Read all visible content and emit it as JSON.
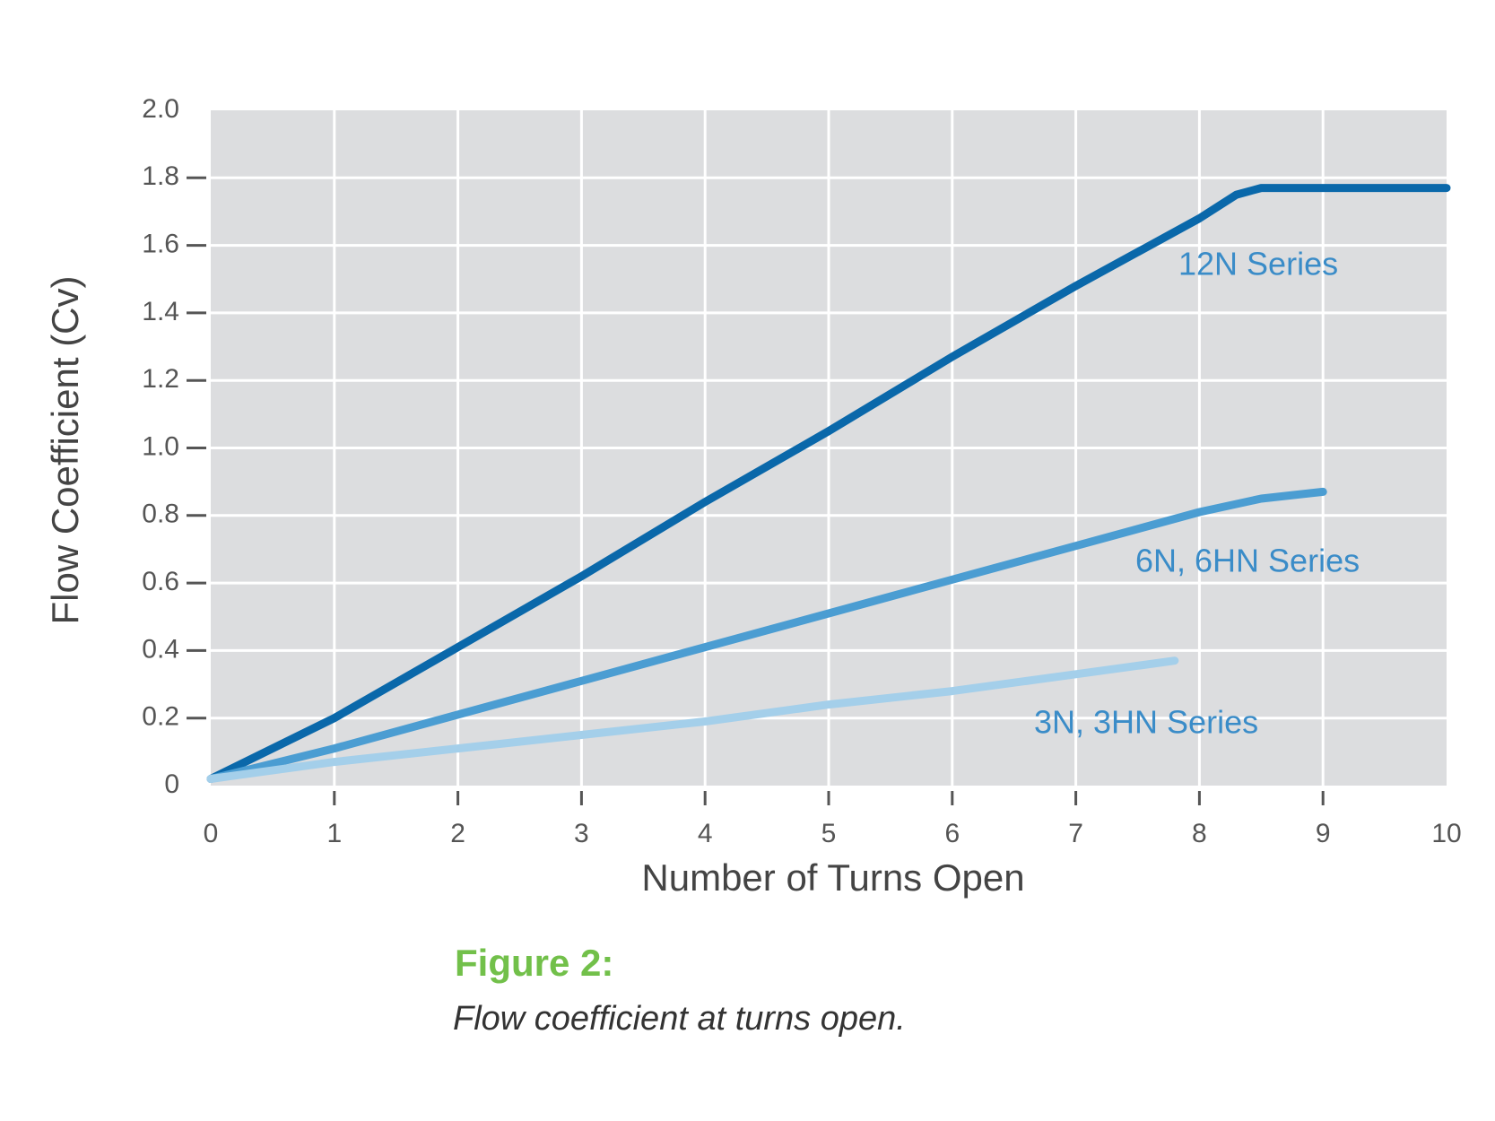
{
  "chart_data": {
    "type": "line",
    "xlabel": "Number of Turns Open",
    "ylabel": "Flow Coefficient (Cv)",
    "figure_number": "Figure 2:",
    "caption": "Flow coefficient at turns open.",
    "xlim": [
      0,
      10
    ],
    "ylim": [
      0,
      2
    ],
    "xticks": [
      0,
      1,
      2,
      3,
      4,
      5,
      6,
      7,
      8,
      9,
      10
    ],
    "yticks": [
      0,
      0.2,
      0.4,
      0.6,
      0.8,
      {
        "value": 1,
        "label": "1.0"
      },
      1.2,
      1.4,
      1.6,
      1.8,
      {
        "value": 2,
        "label": "2.0"
      }
    ],
    "grid": true,
    "series": [
      {
        "name": "12N Series",
        "color": "#0a68aa",
        "x": [
          0,
          1,
          2,
          3,
          4,
          5,
          6,
          7,
          8,
          8.3,
          8.5,
          9,
          10
        ],
        "values": [
          0.02,
          0.2,
          0.41,
          0.62,
          0.84,
          1.05,
          1.27,
          1.48,
          1.68,
          1.75,
          1.77,
          1.77,
          1.77
        ]
      },
      {
        "name": "6N, 6HN Series",
        "color": "#4b9dd2",
        "x": [
          0,
          1,
          2,
          3,
          4,
          5,
          6,
          7,
          8,
          8.5,
          9
        ],
        "values": [
          0.02,
          0.11,
          0.21,
          0.31,
          0.41,
          0.51,
          0.61,
          0.71,
          0.81,
          0.85,
          0.87
        ]
      },
      {
        "name": "3N, 3HN Series",
        "color": "#a4cfea",
        "x": [
          0,
          1,
          2,
          3,
          4,
          5,
          6,
          7,
          7.8
        ],
        "values": [
          0.02,
          0.07,
          0.11,
          0.15,
          0.19,
          0.24,
          0.28,
          0.33,
          0.37
        ]
      }
    ]
  }
}
